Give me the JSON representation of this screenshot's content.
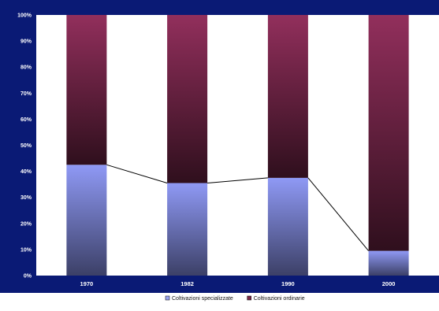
{
  "chart_data": {
    "type": "bar",
    "stacked": true,
    "percent_stacked": true,
    "categories": [
      "1970",
      "1982",
      "1990",
      "2000"
    ],
    "series": [
      {
        "name": "Coltivazioni specializzate",
        "values": [
          42.5,
          35.5,
          37.5,
          9.5
        ],
        "color": "#8f99f5"
      },
      {
        "name": "Coltivazioni ordinarie",
        "values": [
          57.5,
          64.5,
          62.5,
          90.5
        ],
        "color": "#922f5c"
      }
    ],
    "y_ticks": [
      "0%",
      "10%",
      "20%",
      "30%",
      "40%",
      "50%",
      "60%",
      "70%",
      "80%",
      "90%",
      "100%"
    ],
    "ylim": [
      0,
      100
    ],
    "connector_line_series": "Coltivazioni specializzate",
    "legend_position": "bottom",
    "colors": {
      "frame": "#0a1a75",
      "plot_background": "#ffffff",
      "tick_text": "#ffffff",
      "connector": "#000000"
    }
  }
}
